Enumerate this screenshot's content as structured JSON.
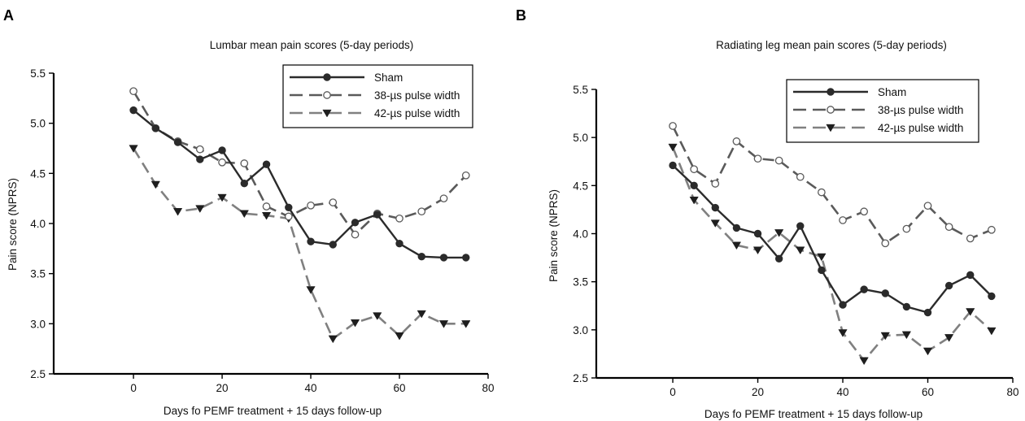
{
  "chart_data": [
    {
      "type": "line",
      "panel_label": "A",
      "title": "Lumbar mean pain scores (5-day periods)",
      "xlabel": "Days fo PEMF treatment + 15 days follow-up",
      "ylabel": "Pain score (NPRS)",
      "xlim": [
        -18,
        80
      ],
      "ylim": [
        2.5,
        5.5
      ],
      "xticks": [
        0,
        20,
        40,
        60,
        80
      ],
      "yticks": [
        2.5,
        3.0,
        3.5,
        4.0,
        4.5,
        5.0,
        5.5
      ],
      "xtick_labels": [
        "0",
        "20",
        "40",
        "60",
        "80"
      ],
      "ytick_labels": [
        "2.5",
        "3.0",
        "3.5",
        "4.0",
        "4.5",
        "5.0",
        "5.5"
      ],
      "legend_position": "top-right",
      "grid": false,
      "x": [
        0,
        5,
        10,
        15,
        20,
        25,
        30,
        35,
        40,
        45,
        50,
        55,
        60,
        65,
        70,
        75
      ],
      "series": [
        {
          "name": "Sham",
          "style": "solid",
          "marker": "filled-circle",
          "color": "#2b2b2b",
          "values": [
            5.13,
            4.95,
            4.81,
            4.64,
            4.73,
            4.4,
            4.59,
            4.16,
            3.82,
            3.79,
            4.01,
            4.09,
            3.8,
            3.67,
            3.66,
            3.66
          ]
        },
        {
          "name": "38-µs pulse width",
          "style": "dashed",
          "marker": "open-circle",
          "color": "#5a5a5a",
          "values": [
            5.32,
            4.95,
            4.82,
            4.74,
            4.61,
            4.6,
            4.17,
            4.07,
            4.18,
            4.21,
            3.89,
            4.1,
            4.05,
            4.12,
            4.25,
            4.48
          ]
        },
        {
          "name": "42-µs pulse width",
          "style": "dashed",
          "marker": "filled-triangle-down",
          "color": "#808080",
          "values": [
            4.75,
            4.39,
            4.12,
            4.15,
            4.26,
            4.1,
            4.08,
            4.05,
            3.34,
            2.85,
            3.01,
            3.08,
            2.88,
            3.1,
            3.0,
            3.0
          ]
        }
      ]
    },
    {
      "type": "line",
      "panel_label": "B",
      "title": "Radiating leg mean pain scores (5-day periods)",
      "xlabel": "Days fo PEMF treatment + 15 days follow-up",
      "ylabel": "Pain score (NPRS)",
      "xlim": [
        -18,
        80
      ],
      "ylim": [
        2.5,
        5.5
      ],
      "xticks": [
        0,
        20,
        40,
        60,
        80
      ],
      "yticks": [
        2.5,
        3.0,
        3.5,
        4.0,
        4.5,
        5.0,
        5.5
      ],
      "xtick_labels": [
        "0",
        "20",
        "40",
        "60",
        "80"
      ],
      "ytick_labels": [
        "2.5",
        "3.0",
        "3.5",
        "4.0",
        "4.5",
        "5.0",
        "5.5"
      ],
      "legend_position": "top-right",
      "grid": false,
      "x": [
        0,
        5,
        10,
        15,
        20,
        25,
        30,
        35,
        40,
        45,
        50,
        55,
        60,
        65,
        70,
        75
      ],
      "series": [
        {
          "name": "Sham",
          "style": "solid",
          "marker": "filled-circle",
          "color": "#2b2b2b",
          "values": [
            4.71,
            4.5,
            4.27,
            4.06,
            4.0,
            3.74,
            4.08,
            3.62,
            3.26,
            3.42,
            3.38,
            3.24,
            3.18,
            3.46,
            3.57,
            3.35
          ]
        },
        {
          "name": "38-µs pulse width",
          "style": "dashed",
          "marker": "open-circle",
          "color": "#5a5a5a",
          "values": [
            5.12,
            4.67,
            4.52,
            4.96,
            4.78,
            4.76,
            4.59,
            4.43,
            4.14,
            4.23,
            3.9,
            4.05,
            4.29,
            4.07,
            3.95,
            4.04
          ]
        },
        {
          "name": "42-µs pulse width",
          "style": "dashed",
          "marker": "filled-triangle-down",
          "color": "#808080",
          "values": [
            4.9,
            4.35,
            4.11,
            3.88,
            3.83,
            4.01,
            3.83,
            3.76,
            2.97,
            2.68,
            2.94,
            2.95,
            2.78,
            2.92,
            3.19,
            2.99
          ]
        }
      ]
    }
  ]
}
